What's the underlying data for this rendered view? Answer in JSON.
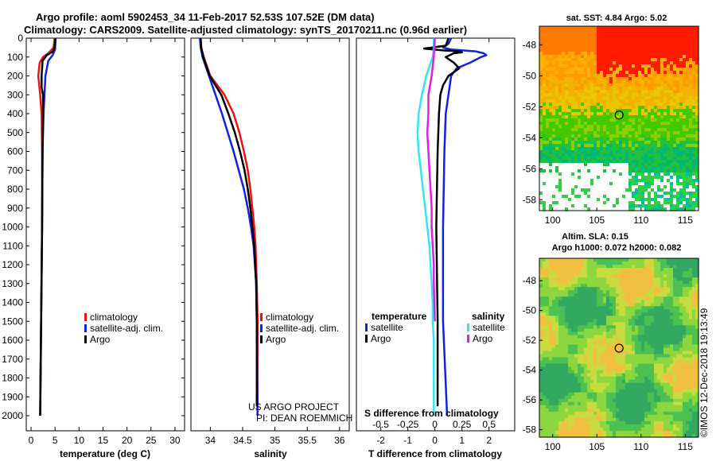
{
  "title": {
    "line1": "Argo profile: aoml 5902453_34 11-Feb-2017 52.53S 107.52E (DM data)",
    "line2": "Climatology: CARS2009. Satellite-adjusted climatology: synTS_20170211.nc (0.96d earlier)"
  },
  "colors": {
    "climatology": "#ee1111",
    "satellite_adj": "#1122dd",
    "argo": "#000000",
    "sat_salinity": "#33e6ee",
    "argo_salinity": "#e020e0"
  },
  "chart_data": [
    {
      "type": "line",
      "id": "temperature",
      "xlabel": "temperature (deg C)",
      "xlim": [
        -1,
        32
      ],
      "xticks": [
        0,
        5,
        10,
        15,
        20,
        25,
        30
      ],
      "ylim": [
        2080,
        0
      ],
      "yticks": [
        0,
        100,
        200,
        300,
        400,
        500,
        600,
        700,
        800,
        900,
        1000,
        1100,
        1200,
        1300,
        1400,
        1500,
        1600,
        1700,
        1800,
        1900,
        2000
      ],
      "legend": [
        "climatology",
        "satellite-adj. clim.",
        "Argo"
      ],
      "series": [
        {
          "name": "climatology",
          "color": "#ee1111",
          "depth": [
            0,
            50,
            80,
            100,
            130,
            200,
            300,
            400,
            600,
            1000,
            1500,
            2000
          ],
          "values": [
            4.9,
            4.7,
            3.6,
            2.5,
            1.8,
            1.5,
            1.9,
            2.2,
            2.3,
            2.3,
            2.1,
            1.9
          ]
        },
        {
          "name": "satellite-adj. clim.",
          "color": "#1122dd",
          "depth": [
            0,
            60,
            90,
            120,
            200,
            300,
            400,
            600,
            1000,
            1500,
            2000
          ],
          "values": [
            5.1,
            5.0,
            4.5,
            3.6,
            3.0,
            2.8,
            2.6,
            2.4,
            2.3,
            2.1,
            1.9
          ]
        },
        {
          "name": "Argo",
          "color": "#000000",
          "depth": [
            0,
            50,
            70,
            90,
            120,
            200,
            260,
            300,
            400,
            600,
            1000,
            1500,
            2000
          ],
          "values": [
            5.1,
            4.9,
            4.6,
            3.3,
            2.4,
            2.2,
            2.2,
            2.5,
            2.5,
            2.4,
            2.3,
            2.1,
            1.9
          ]
        }
      ]
    },
    {
      "type": "line",
      "id": "salinity",
      "xlabel": "salinity",
      "xlim": [
        33.7,
        36.15
      ],
      "xticks": [
        34,
        34.5,
        35,
        35.5,
        36
      ],
      "ylim": [
        2080,
        0
      ],
      "legend": [
        "climatology",
        "satellite-adj. clim.",
        "Argo"
      ],
      "annotation": [
        "US ARGO PROJECT",
        "PI: DEAN ROEMMICH"
      ],
      "series": [
        {
          "name": "climatology",
          "color": "#ee1111",
          "depth": [
            0,
            50,
            100,
            200,
            300,
            400,
            500,
            600,
            700,
            800,
            900,
            1000,
            1100,
            1300,
            1500,
            2000
          ],
          "values": [
            33.85,
            33.86,
            33.9,
            34.0,
            34.22,
            34.36,
            34.45,
            34.52,
            34.58,
            34.62,
            34.65,
            34.68,
            34.7,
            34.72,
            34.73,
            34.73
          ]
        },
        {
          "name": "satellite-adj. clim.",
          "color": "#1122dd",
          "depth": [
            0,
            50,
            100,
            200,
            300,
            400,
            500,
            600,
            700,
            800,
            900,
            1000,
            1100,
            1300,
            1500,
            2000
          ],
          "values": [
            33.84,
            33.85,
            33.88,
            33.98,
            34.08,
            34.18,
            34.27,
            34.36,
            34.44,
            34.52,
            34.58,
            34.63,
            34.67,
            34.71,
            34.72,
            34.73
          ]
        },
        {
          "name": "Argo",
          "color": "#000000",
          "depth": [
            0,
            50,
            100,
            200,
            300,
            400,
            500,
            600,
            700,
            800,
            900,
            1000,
            1100,
            1300,
            1500,
            1950
          ],
          "values": [
            33.85,
            33.86,
            33.89,
            33.99,
            34.17,
            34.28,
            34.38,
            34.46,
            34.53,
            34.58,
            34.62,
            34.65,
            34.68,
            34.71,
            34.72,
            34.72
          ]
        }
      ]
    },
    {
      "type": "line",
      "id": "difference",
      "xlabel": "T difference from climatology",
      "xlabel_top": "S difference from climatology",
      "xlim": [
        -2.9,
        2.95
      ],
      "xticks": [
        -2,
        -1,
        0,
        1,
        2
      ],
      "x2ticks": [
        -0.5,
        -0.25,
        0,
        0.25,
        0.5
      ],
      "x2ticklabels": [
        "-0.5",
        "-0.25",
        "0",
        "0.25",
        "0.5"
      ],
      "x2_scale": 4,
      "ylim": [
        2080,
        0
      ],
      "legend_left_title": "temperature",
      "legend_right_title": "salinity",
      "legend_left": [
        "satellite",
        "Argo"
      ],
      "legend_right": [
        "satellite",
        "Argo"
      ],
      "series": [
        {
          "name": "temperature satellite",
          "color": "#1122dd",
          "depth": [
            0,
            30,
            50,
            60,
            70,
            80,
            90,
            100,
            130,
            160,
            200,
            250,
            300,
            400,
            600,
            1000,
            1500,
            2000
          ],
          "values": [
            0.6,
            0.5,
            0.3,
            0.6,
            1.5,
            1.8,
            1.9,
            1.7,
            1.3,
            0.8,
            0.6,
            0.55,
            0.5,
            0.4,
            0.35,
            0.3,
            0.3,
            0.45
          ]
        },
        {
          "name": "temperature Argo",
          "color": "#000000",
          "depth": [
            0,
            40,
            55,
            65,
            70,
            75,
            80,
            100,
            130,
            160,
            200,
            250,
            300,
            400,
            600,
            1000,
            1500,
            1950
          ],
          "values": [
            0.5,
            0.4,
            -0.4,
            0.3,
            0.9,
            1.0,
            0.7,
            0.4,
            0.7,
            0.9,
            0.5,
            0.3,
            0.2,
            0.15,
            0.1,
            0.05,
            0.1,
            0.1
          ]
        },
        {
          "name": "salinity satellite",
          "color": "#33e6ee",
          "depth": [
            0,
            50,
            100,
            150,
            200,
            300,
            400,
            500,
            600,
            700,
            800,
            900,
            1000,
            1100,
            1200,
            1300,
            1400,
            1500,
            1600,
            2000
          ],
          "values": [
            -0.01,
            -0.01,
            -0.02,
            -0.05,
            -0.08,
            -0.12,
            -0.15,
            -0.16,
            -0.15,
            -0.13,
            -0.11,
            -0.09,
            -0.07,
            -0.05,
            -0.04,
            -0.03,
            -0.02,
            -0.02,
            -0.01,
            -0.01
          ]
        },
        {
          "name": "salinity Argo",
          "color": "#e020e0",
          "depth": [
            0,
            100,
            200,
            300,
            400,
            500,
            600,
            700,
            800,
            900,
            1000,
            1100,
            1200,
            1300,
            1400,
            1500
          ],
          "values": [
            0,
            -0.01,
            -0.03,
            -0.06,
            -0.06,
            -0.07,
            -0.06,
            -0.05,
            -0.04,
            -0.03,
            -0.03,
            -0.02,
            -0.01,
            -0.01,
            -0.005,
            0
          ]
        }
      ]
    }
  ],
  "maps": {
    "sst": {
      "title": "sat. SST: 4.84 Argo: 5.02",
      "xticks": [
        100,
        105,
        110,
        115
      ],
      "yticks": [
        -48,
        -50,
        -52,
        -54,
        -56,
        -58
      ],
      "xlim": [
        98.5,
        116.5
      ],
      "ylim": [
        -58.7,
        -46.8
      ],
      "argo_lon": 107.52,
      "argo_lat": -52.53
    },
    "sla": {
      "title1": "Altim. SLA: 0.15",
      "title2": "Argo h1000: 0.072 h2000: 0.082",
      "xticks": [
        100,
        105,
        110,
        115
      ],
      "yticks": [
        -48,
        -50,
        -52,
        -54,
        -56,
        -58
      ],
      "xlim": [
        98.5,
        116.5
      ],
      "ylim": [
        -58.5,
        -46.5
      ],
      "argo_lon": 107.52,
      "argo_lat": -52.53
    }
  },
  "credit": "©IMOS 12-Dec-2018 19:13:49"
}
